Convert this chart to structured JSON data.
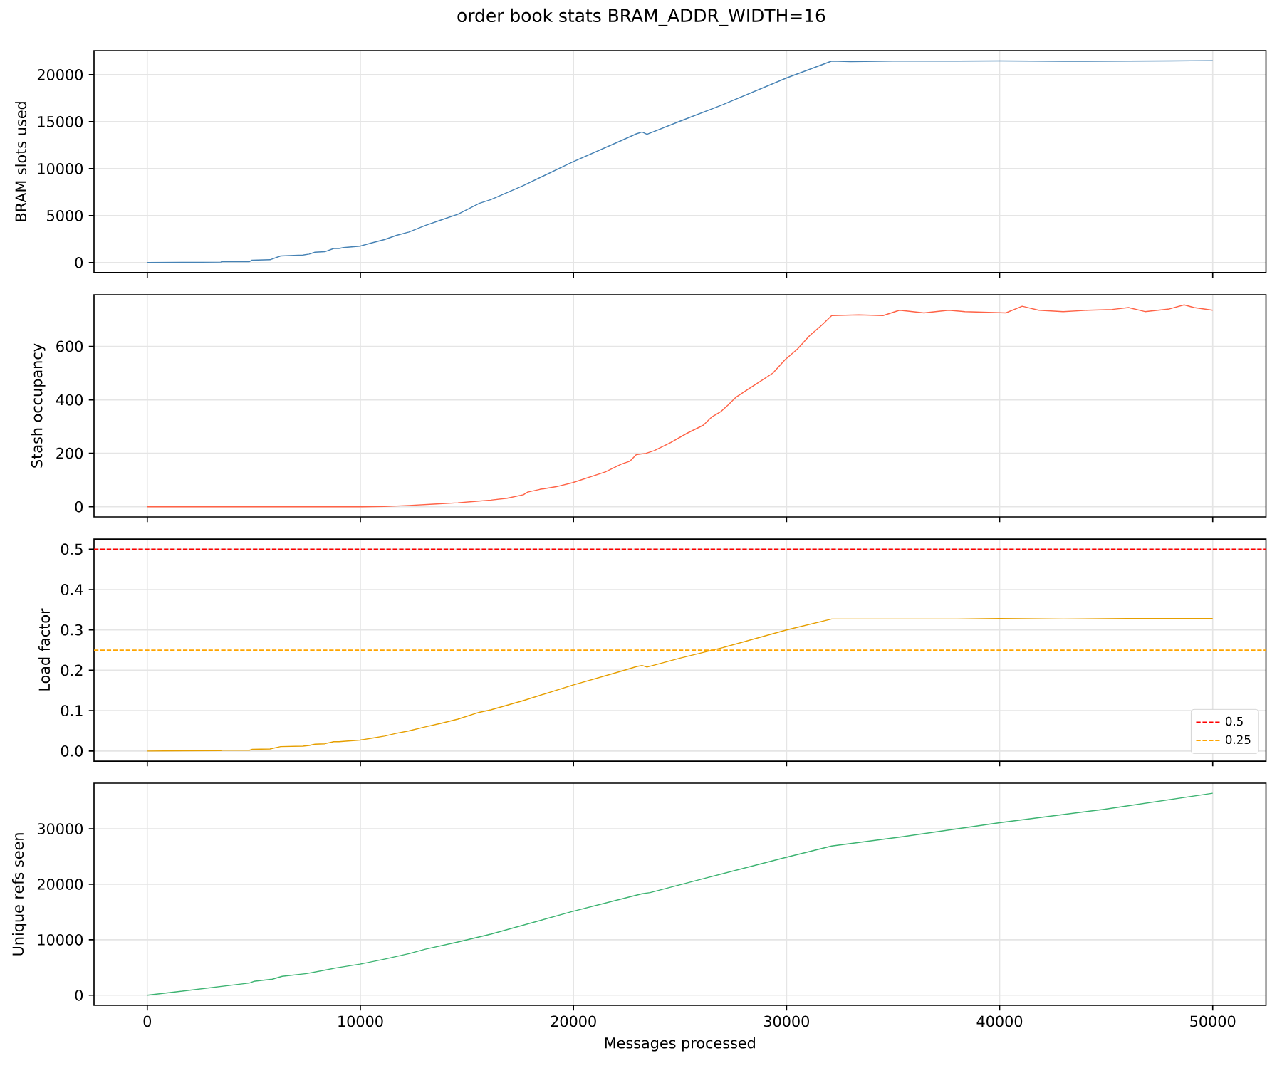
{
  "chart_data": [
    {
      "type": "line",
      "title": "order book stats      BRAM_ADDR_WIDTH=16",
      "ylabel": "BRAM slots used",
      "color": "#4682b4",
      "x": [
        0,
        3450,
        3500,
        4800,
        4910,
        5760,
        6260,
        7300,
        7600,
        7870,
        8330,
        8750,
        9000,
        9210,
        9980,
        10550,
        11130,
        11700,
        12280,
        13050,
        13810,
        14580,
        15580,
        16120,
        17650,
        19950,
        22260,
        22950,
        23220,
        23450,
        25000,
        27000,
        30000,
        32120,
        33000,
        35000,
        38000,
        40000,
        43000,
        46000,
        48000,
        50000
      ],
      "values": [
        0,
        50,
        100,
        100,
        250,
        300,
        700,
        800,
        900,
        1100,
        1150,
        1500,
        1500,
        1600,
        1750,
        2100,
        2450,
        2900,
        3250,
        3950,
        4550,
        5150,
        6300,
        6700,
        8200,
        10700,
        13000,
        13700,
        13900,
        13650,
        15050,
        16800,
        19650,
        21450,
        21400,
        21450,
        21450,
        21480,
        21430,
        21460,
        21480,
        21500
      ],
      "xlim": [
        -2500,
        52500
      ],
      "xticks": [
        0,
        10000,
        20000,
        30000,
        40000,
        50000
      ],
      "ylim": [
        -1075,
        22575
      ],
      "yticks": [
        0,
        5000,
        10000,
        15000,
        20000
      ],
      "grid": true,
      "tick_labels": "y"
    },
    {
      "type": "line",
      "ylabel": "Stash occupancy",
      "color": "#ff6347",
      "x": [
        0,
        10000,
        11130,
        12280,
        13430,
        14580,
        15350,
        16120,
        16890,
        17650,
        17850,
        18420,
        19190,
        19950,
        20720,
        21490,
        22260,
        22640,
        22950,
        23410,
        23790,
        24560,
        25330,
        26090,
        26480,
        26900,
        27250,
        27630,
        28200,
        28780,
        29360,
        29930,
        30510,
        31080,
        31660,
        32120,
        33390,
        34530,
        35300,
        36450,
        37610,
        38370,
        40290,
        41060,
        41830,
        42980,
        44140,
        45290,
        46050,
        46820,
        47970,
        48660,
        49120,
        50000
      ],
      "values": [
        0,
        0,
        1,
        5,
        10,
        15,
        20,
        25,
        32,
        45,
        55,
        65,
        75,
        90,
        110,
        130,
        160,
        170,
        195,
        200,
        210,
        240,
        275,
        305,
        335,
        355,
        380,
        410,
        440,
        470,
        500,
        550,
        590,
        640,
        680,
        715,
        718,
        715,
        735,
        725,
        735,
        730,
        725,
        750,
        735,
        730,
        735,
        738,
        745,
        730,
        740,
        755,
        745,
        735
      ],
      "xlim": [
        -2500,
        52500
      ],
      "xticks": [
        0,
        10000,
        20000,
        30000,
        40000,
        50000
      ],
      "ylim": [
        -38,
        793
      ],
      "yticks": [
        0,
        200,
        400,
        600
      ],
      "grid": true,
      "tick_labels": "y"
    },
    {
      "type": "line",
      "ylabel": "Load factor",
      "color": "#e69f00",
      "x": [
        0,
        3450,
        3500,
        4800,
        4910,
        5760,
        6260,
        7300,
        7600,
        7870,
        8330,
        8750,
        9000,
        9210,
        9980,
        10550,
        11130,
        11700,
        12280,
        13050,
        13810,
        14580,
        15580,
        16120,
        17650,
        19950,
        22260,
        22950,
        23220,
        23450,
        25000,
        27000,
        30000,
        32120,
        33000,
        35000,
        38000,
        40000,
        43000,
        46000,
        48000,
        50000
      ],
      "values": [
        0,
        0.001,
        0.002,
        0.002,
        0.004,
        0.005,
        0.011,
        0.012,
        0.014,
        0.017,
        0.018,
        0.023,
        0.023,
        0.024,
        0.027,
        0.032,
        0.037,
        0.044,
        0.05,
        0.06,
        0.069,
        0.079,
        0.096,
        0.102,
        0.125,
        0.163,
        0.198,
        0.209,
        0.212,
        0.208,
        0.23,
        0.256,
        0.3,
        0.327,
        0.327,
        0.327,
        0.327,
        0.328,
        0.327,
        0.328,
        0.328,
        0.328
      ],
      "xlim": [
        -2500,
        52500
      ],
      "xticks": [
        0,
        10000,
        20000,
        30000,
        40000,
        50000
      ],
      "ylim": [
        -0.025,
        0.525
      ],
      "yticks": [
        {
          "value": 0,
          "label": "0.0"
        },
        0.1,
        0.2,
        0.3,
        0.4,
        0.5
      ],
      "ref_lines": [
        {
          "axis": "y",
          "value": 0.5,
          "label": "0.5",
          "color": "#ff0000",
          "line_style": "dashed"
        },
        {
          "axis": "y",
          "value": 0.25,
          "label": "0.25",
          "color": "#ffa500",
          "line_style": "dashed"
        }
      ],
      "legend": "bottom right",
      "grid": true,
      "tick_labels": "y"
    },
    {
      "type": "line",
      "ylabel": "Unique refs seen",
      "xlabel": "Messages processed",
      "color": "#3cb371",
      "x": [
        0,
        4800,
        5000,
        5870,
        6330,
        7480,
        8440,
        8830,
        9980,
        11130,
        12280,
        13050,
        14580,
        16120,
        19950,
        23220,
        23600,
        26090,
        29930,
        32120,
        35300,
        40000,
        44900,
        50000
      ],
      "values": [
        0,
        2200,
        2500,
        2900,
        3400,
        3900,
        4600,
        4900,
        5600,
        6500,
        7500,
        8300,
        9600,
        11000,
        15100,
        18300,
        18500,
        21000,
        24800,
        26900,
        28500,
        31100,
        33500,
        36400
      ],
      "xlim": [
        -2500,
        52500
      ],
      "xticks": [
        0,
        10000,
        20000,
        30000,
        40000,
        50000
      ],
      "ylim": [
        -1820,
        38220
      ],
      "yticks": [
        0,
        10000,
        20000,
        30000
      ],
      "grid": true
    }
  ]
}
